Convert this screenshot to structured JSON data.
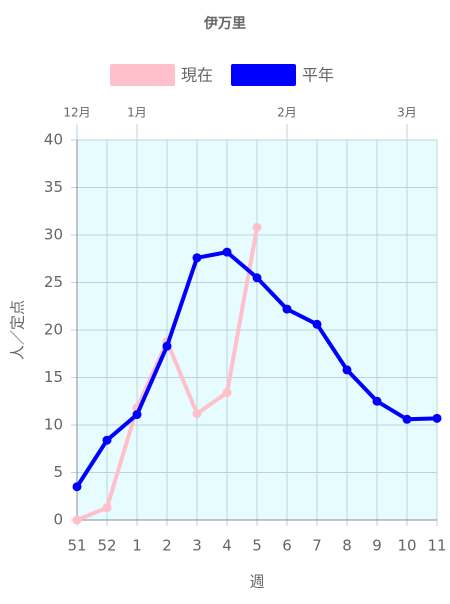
{
  "chart_data": {
    "type": "line",
    "title": "伊万里",
    "categories": [
      "51",
      "52",
      "1",
      "2",
      "3",
      "4",
      "5",
      "6",
      "7",
      "8",
      "9",
      "10",
      "11"
    ],
    "top_labels": [
      "12月",
      null,
      "1月",
      null,
      null,
      null,
      null,
      "2月",
      null,
      null,
      null,
      "3月",
      null
    ],
    "series": [
      {
        "name": "現在",
        "color": "#ffc0cb",
        "values": [
          0,
          1.3,
          11.8,
          18.8,
          11.2,
          13.4,
          30.8,
          null,
          null,
          null,
          null,
          null,
          null
        ]
      },
      {
        "name": "平年",
        "color": "#0000ff",
        "values": [
          3.5,
          8.4,
          11.1,
          18.3,
          27.6,
          28.2,
          25.5,
          22.2,
          20.6,
          15.8,
          12.5,
          10.6,
          10.7
        ]
      }
    ],
    "ylim": [
      0,
      40
    ],
    "yticks": [
      0,
      5,
      10,
      15,
      20,
      25,
      30,
      35,
      40
    ],
    "ylabel": "人／定点",
    "xlabel": "週",
    "grid": true
  }
}
